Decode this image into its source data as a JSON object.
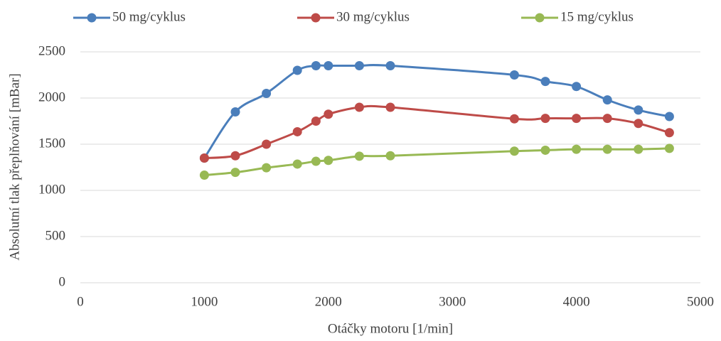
{
  "chart_data": {
    "type": "line",
    "xlabel": "Otáčky motoru [1/min]",
    "ylabel": "Absolutní tlak přeplňování [mBar]",
    "x": [
      1000,
      1250,
      1500,
      1750,
      1900,
      2000,
      2250,
      2500,
      3500,
      3750,
      4000,
      4250,
      4500,
      4750
    ],
    "series": [
      {
        "name": "50 mg/cyklus",
        "color": "#4a7ebb",
        "values": [
          1350,
          1850,
          2050,
          2300,
          2350,
          2350,
          2350,
          2350,
          2250,
          2180,
          2125,
          1980,
          1870,
          1800
        ]
      },
      {
        "name": "30 mg/cyklus",
        "color": "#be4b48",
        "values": [
          1350,
          1375,
          1500,
          1635,
          1750,
          1825,
          1900,
          1900,
          1775,
          1780,
          1780,
          1780,
          1725,
          1625
        ]
      },
      {
        "name": "15 mg/cyklus",
        "color": "#98b954",
        "values": [
          1165,
          1195,
          1245,
          1285,
          1315,
          1325,
          1370,
          1375,
          1425,
          1435,
          1445,
          1445,
          1445,
          1455
        ]
      }
    ],
    "xlim": [
      0,
      5000
    ],
    "xticks": [
      0,
      1000,
      2000,
      3000,
      4000,
      5000
    ],
    "ylim": [
      0,
      2500
    ],
    "yticks": [
      0,
      500,
      1000,
      1500,
      2000,
      2500
    ],
    "grid": true,
    "legend": "top",
    "smooth": true
  }
}
